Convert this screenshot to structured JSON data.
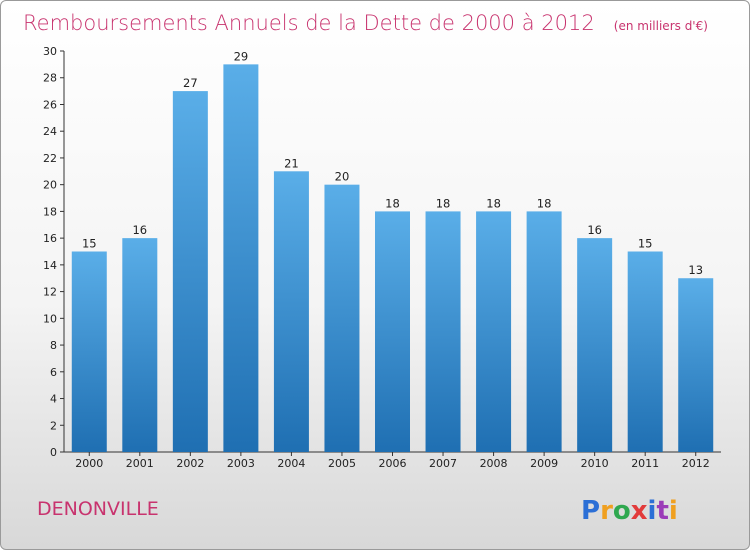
{
  "colors": {
    "title": "#c8336e",
    "place": "#c8336e",
    "bar_top": "#5aaee8",
    "bar_bottom": "#1f6fb2",
    "axis": "#333333"
  },
  "logo": {
    "text": "Proxiti",
    "letters": [
      "P",
      "r",
      "o",
      "x",
      "i",
      "t",
      "i"
    ],
    "colors": [
      "#2b6fd6",
      "#f0a020",
      "#2fa84f",
      "#e23b3b",
      "#2b6fd6",
      "#9b3bb8",
      "#f0a020"
    ]
  },
  "chart_data": {
    "type": "bar",
    "title": "Remboursements Annuels de la Dette de 2000 à 2012",
    "unit": "(en milliers d'€)",
    "place": "DENONVILLE",
    "categories": [
      "2000",
      "2001",
      "2002",
      "2003",
      "2004",
      "2005",
      "2006",
      "2007",
      "2008",
      "2009",
      "2010",
      "2011",
      "2012"
    ],
    "values": [
      15,
      16,
      27,
      29,
      21,
      20,
      18,
      18,
      18,
      18,
      16,
      15,
      13
    ],
    "ylim": [
      0,
      30
    ],
    "yticks": [
      0,
      2,
      4,
      6,
      8,
      10,
      12,
      14,
      16,
      18,
      20,
      22,
      24,
      26,
      28,
      30
    ],
    "grid": false
  }
}
